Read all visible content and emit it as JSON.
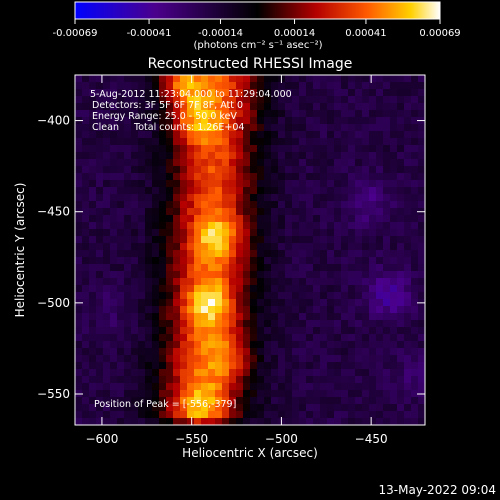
{
  "colorbar": {
    "tick_labels": [
      "-0.00069",
      "-0.00041",
      "-0.00014",
      "0.00014",
      "0.00041",
      "0.00069"
    ],
    "tick_values": [
      -0.00069,
      -0.00041,
      -0.00014,
      0.00014,
      0.00041,
      0.00069
    ],
    "range": [
      -0.00069,
      0.00069
    ],
    "units_label": "(photons cm⁻² s⁻¹ asec⁻²)",
    "colors": [
      "#0000ff",
      "#4b008c",
      "#000000",
      "#b40000",
      "#ff5a00",
      "#ffd000",
      "#ffffff"
    ]
  },
  "chart_data": {
    "type": "heatmap",
    "title": "Reconstructed RHESSI Image",
    "xlabel": "Heliocentric X (arcsec)",
    "ylabel": "Heliocentric Y (arcsec)",
    "xlim": [
      -615,
      -420
    ],
    "ylim": [
      -567,
      -375
    ],
    "x_ticks": [
      -600,
      -550,
      -500,
      -450
    ],
    "x_tick_labels": [
      "−600",
      "−550",
      "−500",
      "−450"
    ],
    "y_ticks": [
      -400,
      -450,
      -500,
      -550
    ],
    "y_tick_labels": [
      "−400",
      "−450",
      "−500",
      "−550"
    ],
    "grid": false,
    "colormap": "blue-purple-black-red-yellow-white",
    "features": [
      {
        "x": -556,
        "y": -379,
        "intensity": 0.00069
      },
      {
        "x": -548,
        "y": -400,
        "intensity": 0.00052
      },
      {
        "x": -535,
        "y": -465,
        "intensity": 0.0005
      },
      {
        "x": -540,
        "y": -500,
        "intensity": 0.00054
      },
      {
        "x": -530,
        "y": -530,
        "intensity": 0.00044
      },
      {
        "x": -545,
        "y": -555,
        "intensity": 0.0004
      },
      {
        "x": -440,
        "y": -495,
        "intensity": -0.00045
      },
      {
        "x": -452,
        "y": -445,
        "intensity": -0.0003
      },
      {
        "x": -425,
        "y": -540,
        "intensity": -0.00022
      },
      {
        "x": -595,
        "y": -505,
        "intensity": -0.00015
      }
    ],
    "annotations": {
      "date_range": "5-Aug-2012 11:23:04.000 to 11:29:04.000",
      "detectors": "Detectors: 3F 5F 6F 7F 8F, Att 0",
      "energy": "Energy Range: 25.0 - 50.0 keV",
      "clean": "Clean     Total counts: 1.26E+04",
      "peak": "Position of Peak = [-556,-379]"
    }
  },
  "footer": {
    "timestamp": "13-May-2022 09:04"
  }
}
